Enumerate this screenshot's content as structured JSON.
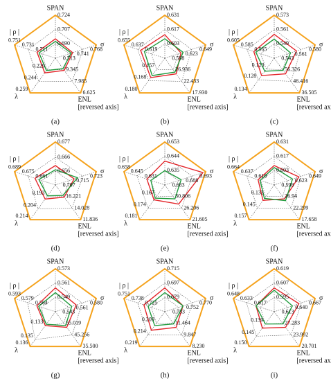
{
  "chart_data": [
    {
      "type": "radar",
      "label": "(a)",
      "outline_color": "#f5a21c",
      "axes": [
        {
          "label": "SPAN",
          "ticks": [
            {
              "value": 0.69,
              "label": "0.690"
            },
            0.707,
            0.724
          ],
          "rlim": [
            0.673,
            0.724
          ]
        },
        {
          "label": "σ",
          "ticks": [
            0.713,
            0.741,
            0.768
          ],
          "rlim": [
            0.685,
            0.768
          ]
        },
        {
          "label": "ENL",
          "note": "[reversed axis]",
          "ticks": [
            9.345,
            7.985,
            6.625
          ],
          "rlim": [
            10.705,
            6.625
          ]
        },
        {
          "label": "λ",
          "ticks": [
            0.229,
            0.244,
            0.259
          ],
          "rlim": [
            0.214,
            0.259
          ]
        },
        {
          "label": "| ρ |",
          "ticks": [
            0.711,
            0.731,
            0.751
          ],
          "rlim": [
            0.691,
            0.751
          ]
        }
      ],
      "series": [
        {
          "color": "#e3262b",
          "values": [
            0.696,
            0.72,
            9.277,
            0.233,
            0.718
          ]
        },
        {
          "color": "#1f9a3c",
          "values": [
            0.693,
            0.717,
            9.481,
            0.23,
            0.715
          ]
        }
      ]
    },
    {
      "type": "radar",
      "label": "(b)",
      "outline_color": "#f5a21c",
      "axes": [
        {
          "label": "SPAN",
          "ticks": [
            0.603,
            0.617,
            0.631
          ],
          "rlim": [
            0.589,
            0.631
          ]
        },
        {
          "label": "σ",
          "ticks": [
            0.598,
            0.623,
            0.649
          ],
          "rlim": [
            0.573,
            0.649
          ]
        },
        {
          "label": "ENL",
          "note": "[reversed axis]",
          "ticks": [
            26.936,
            22.433,
            {
              "value": 17.93,
              "label": "17.930"
            }
          ],
          "rlim": [
            31.439,
            17.93
          ]
        },
        {
          "label": "λ",
          "ticks": [
            0.157,
            0.168,
            {
              "value": 0.18,
              "label": "0.180"
            }
          ],
          "rlim": [
            0.146,
            0.18
          ]
        },
        {
          "label": "| ρ |",
          "ticks": [
            0.619,
            0.637,
            0.655
          ],
          "rlim": [
            0.601,
            0.655
          ]
        }
      ],
      "series": [
        {
          "color": "#e3262b",
          "values": [
            0.612,
            0.603,
            25.36,
            0.165,
            0.633
          ]
        },
        {
          "color": "#1f9a3c",
          "values": [
            0.608,
            0.607,
            26.035,
            0.163,
            0.628
          ]
        }
      ]
    },
    {
      "type": "radar",
      "label": "(c)",
      "outline_color": "#f5a21c",
      "axes": [
        {
          "label": "SPAN",
          "ticks": [
            0.549,
            0.561,
            0.573
          ],
          "rlim": [
            0.537,
            0.573
          ]
        },
        {
          "label": "σ",
          "ticks": [
            0.543,
            0.561,
            {
              "value": 0.58,
              "label": "0.580"
            }
          ],
          "rlim": [
            0.525,
            0.58
          ]
        },
        {
          "label": "ENL",
          "note": "[reversed axis]",
          "ticks": [
            56.326,
            46.416,
            36.505
          ],
          "rlim": [
            66.236,
            36.505
          ]
        },
        {
          "label": "λ",
          "ticks": [
            0.123,
            0.128,
            0.134
          ],
          "rlim": [
            0.118,
            0.134
          ]
        },
        {
          "label": "| ρ |",
          "ticks": [
            0.565,
            0.585,
            0.605
          ],
          "rlim": [
            0.545,
            0.605
          ]
        }
      ],
      "series": [
        {
          "color": "#e3262b",
          "values": [
            0.557,
            0.555,
            52.857,
            0.126,
            0.575
          ]
        },
        {
          "color": "#1f9a3c",
          "values": [
            0.553,
            0.547,
            55.83,
            0.124,
            0.572
          ]
        }
      ]
    },
    {
      "type": "radar",
      "label": "(d)",
      "outline_color": "#f5a21c",
      "axes": [
        {
          "label": "SPAN",
          "ticks": [
            0.656,
            0.666,
            0.677
          ],
          "rlim": [
            0.646,
            0.677
          ]
        },
        {
          "label": "σ",
          "ticks": [
            0.707,
            0.715,
            0.723
          ],
          "rlim": [
            0.699,
            0.723
          ]
        },
        {
          "label": "ENL",
          "note": "[reversed axis]",
          "ticks": [
            16.221,
            14.028,
            11.836
          ],
          "rlim": [
            18.414,
            11.836
          ]
        },
        {
          "label": "λ",
          "ticks": [
            0.193,
            0.204,
            0.214
          ],
          "rlim": [
            0.182,
            0.214
          ]
        },
        {
          "label": "| ρ |",
          "ticks": [
            0.661,
            0.675,
            0.689
          ],
          "rlim": [
            0.647,
            0.689
          ]
        }
      ],
      "series": [
        {
          "color": "#e3262b",
          "values": [
            0.66,
            0.71,
            16.112,
            0.195,
            0.668
          ]
        },
        {
          "color": "#1f9a3c",
          "values": [
            0.657,
            0.712,
            16.441,
            0.192,
            0.664
          ]
        }
      ]
    },
    {
      "type": "radar",
      "label": "(e)",
      "outline_color": "#f5a21c",
      "axes": [
        {
          "label": "SPAN",
          "ticks": [
            0.635,
            0.644,
            0.653
          ],
          "rlim": [
            0.626,
            0.653
          ]
        },
        {
          "label": "σ",
          "ticks": [
            0.683,
            0.688,
            0.693
          ],
          "rlim": [
            0.678,
            0.693
          ]
        },
        {
          "label": "ENL",
          "note": "[reversed axis]",
          "ticks": [
            30.806,
            26.206,
            21.605
          ],
          "rlim": [
            35.406,
            21.605
          ]
        },
        {
          "label": "λ",
          "ticks": [
            0.167,
            0.174,
            0.181
          ],
          "rlim": [
            0.16,
            0.181
          ]
        },
        {
          "label": "| ρ |",
          "ticks": [
            0.631,
            0.645,
            0.658
          ],
          "rlim": [
            0.617,
            0.658
          ]
        }
      ],
      "series": [
        {
          "color": "#e3262b",
          "values": [
            0.641,
            0.692,
            27.815,
            0.169,
            0.635
          ]
        },
        {
          "color": "#1f9a3c",
          "values": [
            0.635,
            0.684,
            29.886,
            0.168,
            0.631
          ]
        }
      ]
    },
    {
      "type": "radar",
      "label": "(f)",
      "outline_color": "#f5a21c",
      "axes": [
        {
          "label": "SPAN",
          "ticks": [
            0.603,
            0.617,
            0.631
          ],
          "rlim": [
            0.589,
            0.631
          ]
        },
        {
          "label": "σ",
          "ticks": [
            0.598,
            0.623,
            0.649
          ],
          "rlim": [
            0.573,
            0.649
          ]
        },
        {
          "label": "ENL",
          "note": "[reversed axis]",
          "ticks": [
            26.94,
            22.299,
            17.658
          ],
          "rlim": [
            31.581,
            17.658
          ]
        },
        {
          "label": "λ",
          "ticks": [
            0.133,
            0.145,
            0.157
          ],
          "rlim": [
            0.121,
            0.157
          ]
        },
        {
          "label": "| ρ |",
          "ticks": [
            {
              "value": 0.61,
              "label": "0.610"
            },
            0.637,
            0.664
          ],
          "rlim": [
            0.583,
            0.664
          ]
        }
      ],
      "series": [
        {
          "color": "#e3262b",
          "values": [
            0.608,
            0.619,
            26.007,
            0.137,
            0.615
          ]
        },
        {
          "color": "#1f9a3c",
          "values": [
            0.606,
            0.607,
            25.311,
            0.135,
            0.611
          ]
        }
      ]
    },
    {
      "type": "radar",
      "label": "(g)",
      "outline_color": "#f5a21c",
      "axes": [
        {
          "label": "SPAN",
          "ticks": [
            0.549,
            0.561,
            0.573
          ],
          "rlim": [
            0.537,
            0.573
          ]
        },
        {
          "label": "σ",
          "ticks": [
            0.543,
            0.561,
            {
              "value": 0.58,
              "label": "0.580"
            }
          ],
          "rlim": [
            0.525,
            0.58
          ]
        },
        {
          "label": "ENL",
          "note": "[reversed axis]",
          "ticks": [
            55.019,
            45.256,
            {
              "value": 35.5,
              "label": "35.500"
            }
          ],
          "rlim": [
            64.782,
            35.5
          ]
        },
        {
          "label": "λ",
          "ticks": [
            0.133,
            0.135,
            0.136
          ],
          "rlim": [
            0.131,
            0.136
          ]
        },
        {
          "label": "| ρ |",
          "ticks": [
            0.564,
            0.579,
            0.593
          ],
          "rlim": [
            0.549,
            0.593
          ]
        }
      ],
      "series": [
        {
          "color": "#e3262b",
          "values": [
            0.557,
            0.553,
            51.605,
            0.133,
            0.569
          ]
        },
        {
          "color": "#1f9a3c",
          "values": [
            0.553,
            0.547,
            53.069,
            0.1328,
            0.567
          ]
        }
      ]
    },
    {
      "type": "radar",
      "label": "(h)",
      "outline_color": "#f5a21c",
      "axes": [
        {
          "label": "SPAN",
          "ticks": [
            0.679,
            0.697,
            0.715
          ],
          "rlim": [
            0.661,
            0.715
          ]
        },
        {
          "label": "σ",
          "ticks": [
            0.733,
            0.752,
            {
              "value": 0.77,
              "label": "0.770"
            }
          ],
          "rlim": [
            0.714,
            0.77
          ]
        },
        {
          "label": "ENL",
          "note": "[reversed axis]",
          "ticks": [
            11.464,
            9.847,
            {
              "value": 8.23,
              "label": "8.230"
            }
          ],
          "rlim": [
            13.081,
            8.23
          ]
        },
        {
          "label": "λ",
          "ticks": [
            0.209,
            0.214,
            0.219
          ],
          "rlim": [
            0.204,
            0.219
          ]
        },
        {
          "label": "| ρ |",
          "ticks": [
            0.725,
            0.738,
            0.751
          ],
          "rlim": [
            0.712,
            0.751
          ]
        }
      ],
      "series": [
        {
          "color": "#e3262b",
          "values": [
            0.691,
            0.739,
            10.898,
            0.212,
            0.732
          ]
        },
        {
          "color": "#1f9a3c",
          "values": [
            0.685,
            0.739,
            11.383,
            0.21,
            0.728
          ]
        }
      ]
    },
    {
      "type": "radar",
      "label": "(i)",
      "outline_color": "#f5a21c",
      "axes": [
        {
          "label": "SPAN",
          "ticks": [
            0.595,
            0.607,
            0.619
          ],
          "rlim": [
            0.583,
            0.619
          ]
        },
        {
          "label": "σ",
          "ticks": [
            0.613,
            {
              "value": 0.64,
              "label": "0.640"
            },
            0.667
          ],
          "rlim": [
            0.586,
            0.667
          ]
        },
        {
          "label": "ENL",
          "note": "[reversed axis]",
          "ticks": [
            27.283,
            23.992,
            20.701
          ],
          "rlim": [
            30.574,
            20.701
          ]
        },
        {
          "label": "λ",
          "ticks": [
            0.139,
            0.145,
            {
              "value": 0.15,
              "label": "0.150"
            }
          ],
          "rlim": [
            0.133,
            0.15
          ]
        },
        {
          "label": "| ρ |",
          "ticks": [
            0.617,
            0.633,
            0.648
          ],
          "rlim": [
            0.601,
            0.648
          ]
        }
      ],
      "series": [
        {
          "color": "#e3262b",
          "values": [
            0.603,
            0.635,
            26.131,
            0.141,
            0.622
          ]
        },
        {
          "color": "#1f9a3c",
          "values": [
            0.601,
            0.622,
            27.118,
            0.139,
            0.622
          ]
        }
      ]
    }
  ]
}
